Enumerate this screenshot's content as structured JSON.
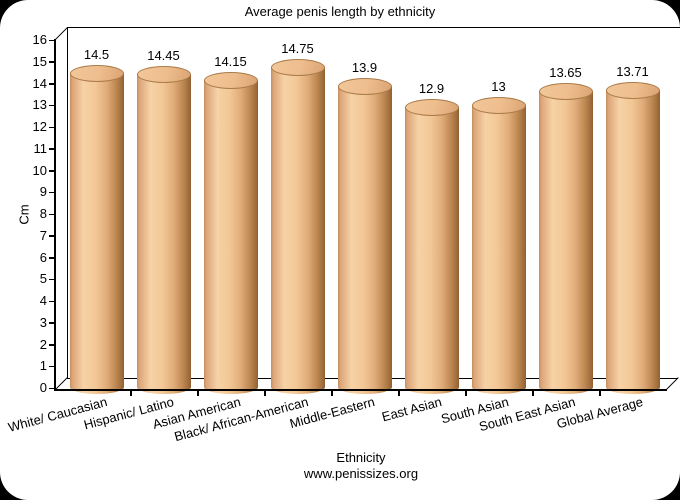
{
  "window": {
    "background": "#000000",
    "surface": "#ffffff"
  },
  "header": {
    "title": "Average penis length by ethnicity"
  },
  "y_axis": {
    "label": "Cm",
    "min": 0,
    "max": 16,
    "step": 1,
    "tick_labels": [
      "0",
      "1",
      "2",
      "3",
      "4",
      "5",
      "6",
      "7",
      "8",
      "9",
      "10",
      "11",
      "12",
      "13",
      "14",
      "15",
      "16"
    ]
  },
  "x_axis": {
    "label": "Ethnicity"
  },
  "footer": {
    "source": "www.penissizes.org"
  },
  "chart_data": {
    "type": "bar",
    "style": "3d-cylinder",
    "title": "Average penis length by ethnicity",
    "xlabel": "Ethnicity",
    "ylabel": "Cm",
    "ylim": [
      0,
      16
    ],
    "y_tick_step": 1,
    "grid": false,
    "legend": false,
    "bar_color": "#f2c795",
    "categories": [
      "White/ Caucasian",
      "Hispanic/ Latino",
      "Asian American",
      "Black/ African-American",
      "Middle-Eastern",
      "East Asian",
      "South Asian",
      "South East Asian",
      "Global Average"
    ],
    "values": [
      14.5,
      14.45,
      14.15,
      14.75,
      13.9,
      12.9,
      13,
      13.65,
      13.71
    ],
    "value_labels": [
      "14.5",
      "14.45",
      "14.15",
      "14.75",
      "13.9",
      "12.9",
      "13",
      "13.65",
      "13.71"
    ]
  }
}
